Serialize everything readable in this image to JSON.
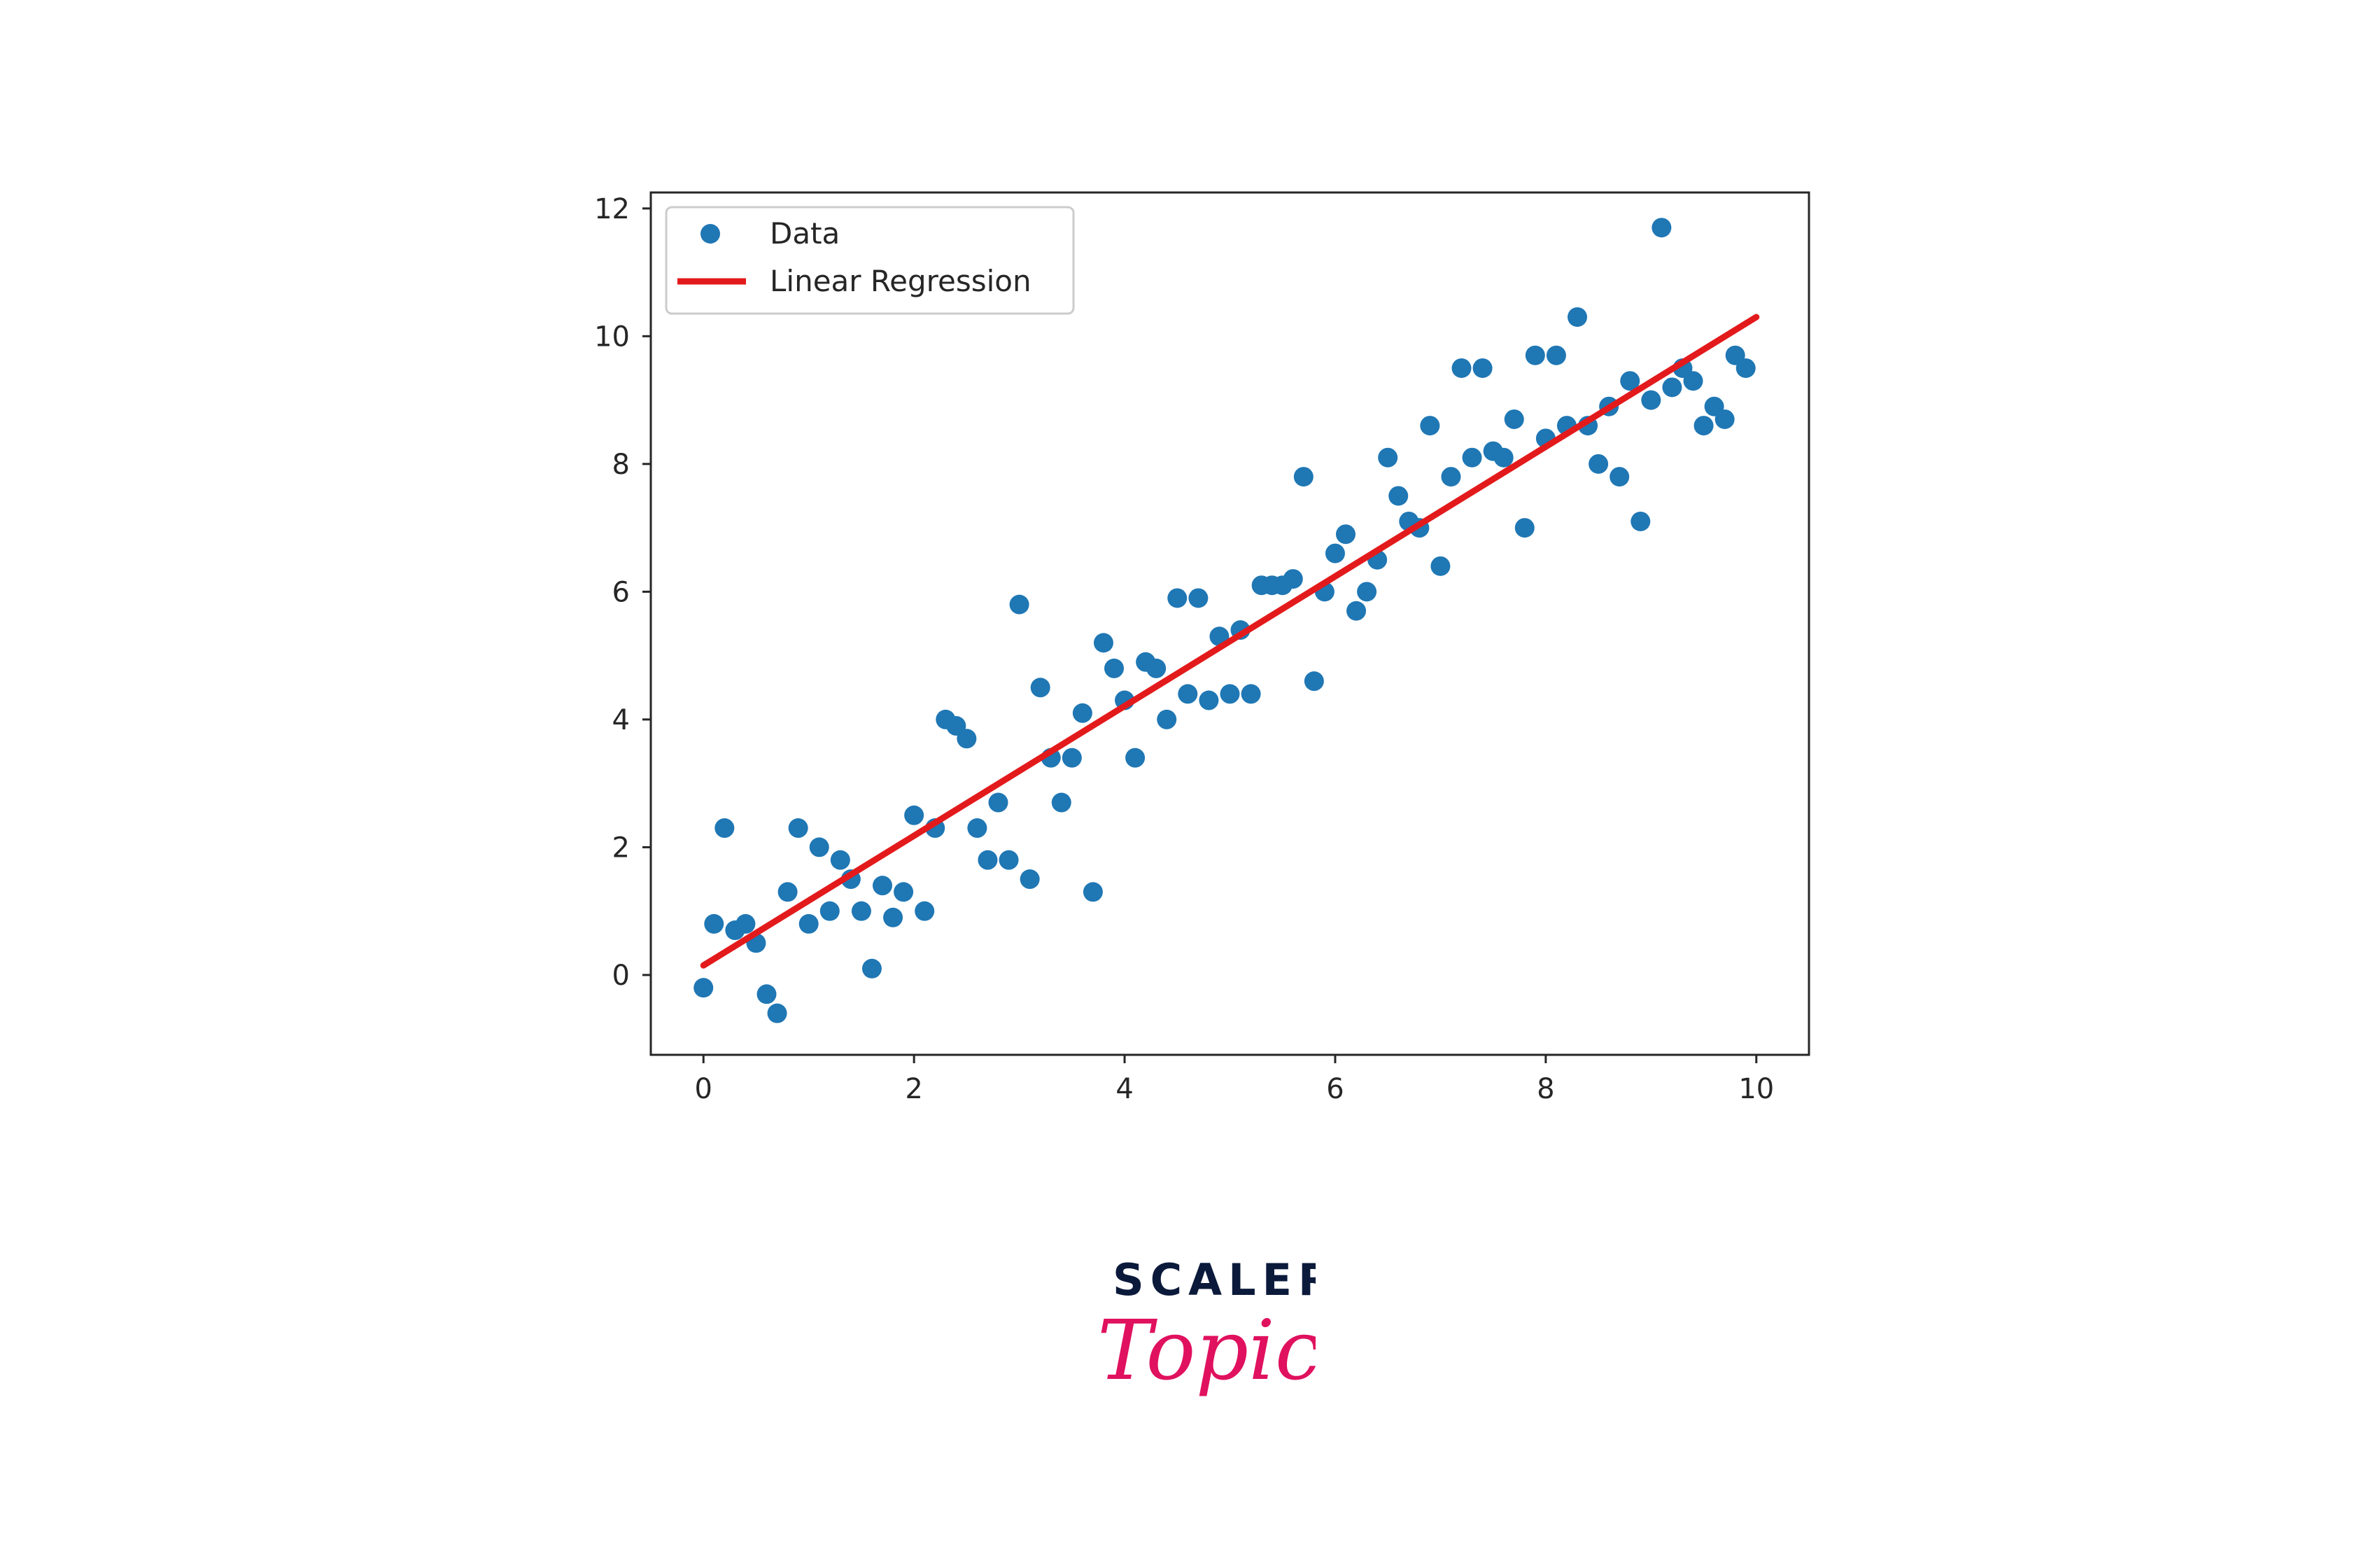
{
  "chart_data": {
    "type": "scatter",
    "title": "",
    "xlabel": "",
    "ylabel": "",
    "xlim": [
      -0.5,
      10.5
    ],
    "ylim": [
      -1.25,
      12.25
    ],
    "xticks": [
      0,
      2,
      4,
      6,
      8,
      10
    ],
    "yticks": [
      0,
      2,
      4,
      6,
      8,
      10,
      12
    ],
    "xtick_labels": [
      "0",
      "2",
      "4",
      "6",
      "8",
      "10"
    ],
    "ytick_labels": [
      "0",
      "2",
      "4",
      "6",
      "8",
      "10",
      "12"
    ],
    "grid": false,
    "legend": {
      "position": "top-left",
      "entries": [
        {
          "label": "Data",
          "marker": "circle",
          "color": "#1f77b4"
        },
        {
          "label": "Linear Regression",
          "marker": "line",
          "color": "#e31a1c"
        }
      ]
    },
    "series": [
      {
        "name": "Data",
        "kind": "scatter",
        "color": "#1f77b4",
        "points": [
          [
            0.0,
            -0.2
          ],
          [
            0.1,
            0.8
          ],
          [
            0.2,
            2.3
          ],
          [
            0.3,
            0.7
          ],
          [
            0.4,
            0.8
          ],
          [
            0.5,
            0.5
          ],
          [
            0.6,
            -0.3
          ],
          [
            0.7,
            -0.6
          ],
          [
            0.8,
            1.3
          ],
          [
            0.9,
            2.3
          ],
          [
            1.0,
            0.8
          ],
          [
            1.1,
            2.0
          ],
          [
            1.2,
            1.0
          ],
          [
            1.3,
            1.8
          ],
          [
            1.4,
            1.5
          ],
          [
            1.5,
            1.0
          ],
          [
            1.6,
            0.1
          ],
          [
            1.7,
            1.4
          ],
          [
            1.8,
            0.9
          ],
          [
            1.9,
            1.3
          ],
          [
            2.0,
            2.5
          ],
          [
            2.1,
            1.0
          ],
          [
            2.2,
            2.3
          ],
          [
            2.3,
            4.0
          ],
          [
            2.4,
            3.9
          ],
          [
            2.5,
            3.7
          ],
          [
            2.6,
            2.3
          ],
          [
            2.7,
            1.8
          ],
          [
            2.8,
            2.7
          ],
          [
            2.9,
            1.8
          ],
          [
            3.0,
            5.8
          ],
          [
            3.1,
            1.5
          ],
          [
            3.2,
            4.5
          ],
          [
            3.3,
            3.4
          ],
          [
            3.4,
            2.7
          ],
          [
            3.5,
            3.4
          ],
          [
            3.6,
            4.1
          ],
          [
            3.7,
            1.3
          ],
          [
            3.8,
            5.2
          ],
          [
            3.9,
            4.8
          ],
          [
            4.0,
            4.3
          ],
          [
            4.1,
            3.4
          ],
          [
            4.2,
            4.9
          ],
          [
            4.3,
            4.8
          ],
          [
            4.4,
            4.0
          ],
          [
            4.5,
            5.9
          ],
          [
            4.6,
            4.4
          ],
          [
            4.7,
            5.9
          ],
          [
            4.8,
            4.3
          ],
          [
            4.9,
            5.3
          ],
          [
            5.0,
            4.4
          ],
          [
            5.1,
            5.4
          ],
          [
            5.2,
            4.4
          ],
          [
            5.3,
            6.1
          ],
          [
            5.4,
            6.1
          ],
          [
            5.5,
            6.1
          ],
          [
            5.6,
            6.2
          ],
          [
            5.7,
            7.8
          ],
          [
            5.8,
            4.6
          ],
          [
            5.9,
            6.0
          ],
          [
            6.0,
            6.6
          ],
          [
            6.1,
            6.9
          ],
          [
            6.2,
            5.7
          ],
          [
            6.3,
            6.0
          ],
          [
            6.4,
            6.5
          ],
          [
            6.5,
            8.1
          ],
          [
            6.6,
            7.5
          ],
          [
            6.7,
            7.1
          ],
          [
            6.8,
            7.0
          ],
          [
            6.9,
            8.6
          ],
          [
            7.0,
            6.4
          ],
          [
            7.1,
            7.8
          ],
          [
            7.2,
            9.5
          ],
          [
            7.3,
            8.1
          ],
          [
            7.4,
            9.5
          ],
          [
            7.5,
            8.2
          ],
          [
            7.6,
            8.1
          ],
          [
            7.7,
            8.7
          ],
          [
            7.8,
            7.0
          ],
          [
            7.9,
            9.7
          ],
          [
            8.0,
            8.4
          ],
          [
            8.1,
            9.7
          ],
          [
            8.2,
            8.6
          ],
          [
            8.3,
            10.3
          ],
          [
            8.4,
            8.6
          ],
          [
            8.5,
            8.0
          ],
          [
            8.6,
            8.9
          ],
          [
            8.7,
            7.8
          ],
          [
            8.8,
            9.3
          ],
          [
            8.9,
            7.1
          ],
          [
            9.0,
            9.0
          ],
          [
            9.1,
            11.7
          ],
          [
            9.2,
            9.2
          ],
          [
            9.3,
            9.5
          ],
          [
            9.4,
            9.3
          ],
          [
            9.5,
            8.6
          ],
          [
            9.6,
            8.9
          ],
          [
            9.7,
            8.7
          ],
          [
            9.8,
            9.7
          ],
          [
            9.9,
            9.5
          ]
        ]
      },
      {
        "name": "Linear Regression",
        "kind": "line",
        "color": "#e31a1c",
        "points": [
          [
            0.0,
            0.15
          ],
          [
            10.0,
            10.3
          ]
        ]
      }
    ]
  },
  "logo": {
    "word": "SCALER",
    "script": "Topics",
    "word_color": "#0b1a3b",
    "script_color": "#e0115f"
  }
}
